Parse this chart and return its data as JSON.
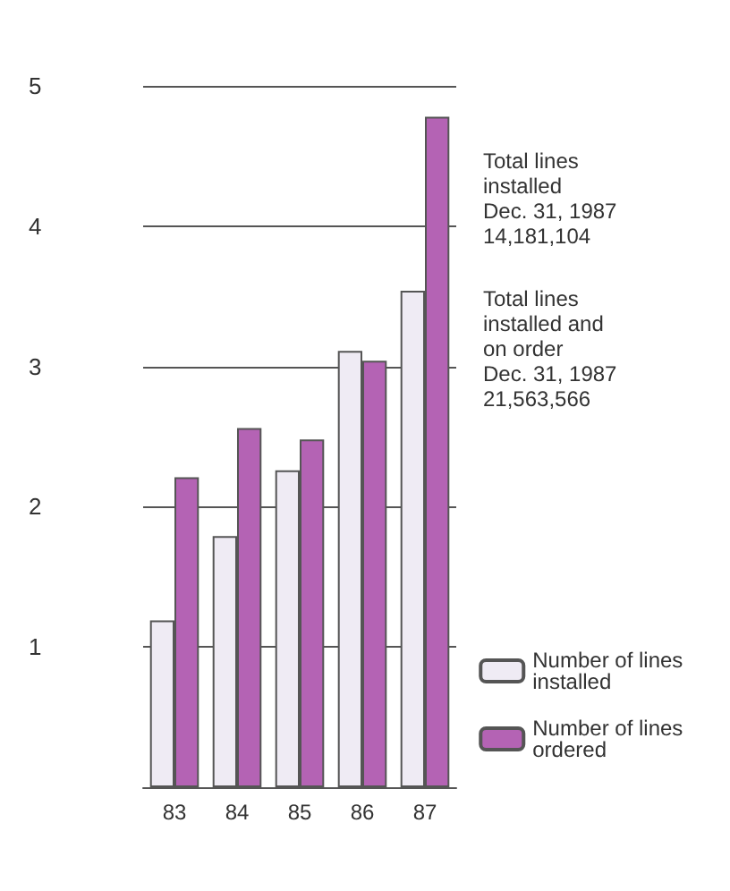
{
  "chart_data": {
    "type": "bar",
    "categories": [
      "83",
      "84",
      "85",
      "86",
      "87"
    ],
    "series": [
      {
        "name": "Number of lines installed",
        "color": "#efebf4",
        "values": [
          1.19,
          1.79,
          2.26,
          3.11,
          3.54
        ]
      },
      {
        "name": "Number of lines ordered",
        "color": "#b463b4",
        "values": [
          2.21,
          2.56,
          2.48,
          3.04,
          4.78
        ]
      }
    ],
    "ylim": [
      0,
      5
    ],
    "yticks": [
      1,
      2,
      3,
      4,
      5
    ],
    "grid": "y",
    "legend": "bottom right",
    "annotations": [
      "Total lines\ninstalled\nDec. 31, 1987\n14,181,104",
      "Total lines\ninstalled and\non order\nDec. 31, 1987\n21,563,566"
    ]
  }
}
